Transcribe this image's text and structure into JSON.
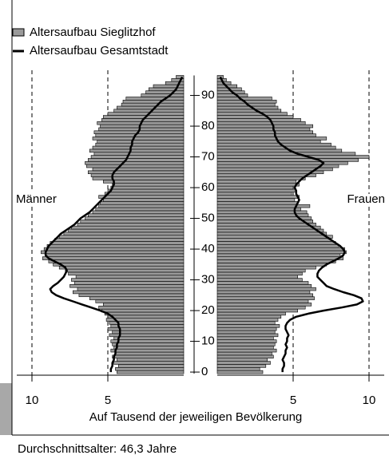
{
  "chart_data": {
    "type": "pyramid",
    "sides": [
      "Männer",
      "Frauen"
    ],
    "xlabel": "Auf Tausend der jeweiligen Bevölkerung",
    "xlim": [
      0,
      11
    ],
    "xticks": [
      5,
      10
    ],
    "ylim": [
      0,
      97
    ],
    "yticks": [
      0,
      10,
      20,
      30,
      40,
      50,
      60,
      70,
      80,
      90
    ],
    "grid": true,
    "series": [
      {
        "name": "Altersaufbau Sieglitzhof",
        "kind": "bar",
        "color": "#9a9a9a",
        "men": [
          4.4,
          4.5,
          4.3,
          4.6,
          4.4,
          4.7,
          4.5,
          4.8,
          4.6,
          4.7,
          4.8,
          4.6,
          4.9,
          4.7,
          5.0,
          4.8,
          4.9,
          5.1,
          5.0,
          5.2,
          5.4,
          5.6,
          5.3,
          5.8,
          6.2,
          6.9,
          7.3,
          7.0,
          7.5,
          7.2,
          7.4,
          7.1,
          7.6,
          7.8,
          8.2,
          8.6,
          8.9,
          9.3,
          9.1,
          9.4,
          9.2,
          9.0,
          8.8,
          8.5,
          8.2,
          7.9,
          7.6,
          7.4,
          7.0,
          6.8,
          6.5,
          6.3,
          6.0,
          5.8,
          5.6,
          5.5,
          5.3,
          5.6,
          5.2,
          5.0,
          4.8,
          4.7,
          5.3,
          6.0,
          6.1,
          6.3,
          6.0,
          6.4,
          6.5,
          6.3,
          6.1,
          5.9,
          6.2,
          6.0,
          5.8,
          5.7,
          6.0,
          5.8,
          5.9,
          5.6,
          5.5,
          5.7,
          5.4,
          5.3,
          5.0,
          4.6,
          4.4,
          4.1,
          4.0,
          3.8,
          2.8,
          2.5,
          2.3,
          2.0,
          1.2,
          0.8,
          0.5
        ],
        "women": [
          3.0,
          2.8,
          3.2,
          3.5,
          3.3,
          3.7,
          3.6,
          3.9,
          3.7,
          3.8,
          3.9,
          3.7,
          4.0,
          3.8,
          3.9,
          4.1,
          3.8,
          4.0,
          4.2,
          4.5,
          5.3,
          5.8,
          6.2,
          6.0,
          6.4,
          6.3,
          6.1,
          6.5,
          6.2,
          6.0,
          5.6,
          5.3,
          5.6,
          5.8,
          6.5,
          7.2,
          7.8,
          8.3,
          8.1,
          8.5,
          8.4,
          8.0,
          7.8,
          7.5,
          7.6,
          7.2,
          7.0,
          6.8,
          6.5,
          6.3,
          6.2,
          6.0,
          5.9,
          5.5,
          6.1,
          5.3,
          5.1,
          5.4,
          4.9,
          5.2,
          5.0,
          5.4,
          5.2,
          5.8,
          6.5,
          7.0,
          7.6,
          8.0,
          8.6,
          9.3,
          10.0,
          9.1,
          8.2,
          7.8,
          7.5,
          6.8,
          7.2,
          6.5,
          6.3,
          6.1,
          6.3,
          5.8,
          5.5,
          5.0,
          4.6,
          4.2,
          4.0,
          3.8,
          3.9,
          3.6,
          2.0,
          1.8,
          1.6,
          1.3,
          0.9,
          0.6,
          0.4
        ]
      },
      {
        "name": "Altersaufbau Gesamtstadt",
        "kind": "line",
        "color": "#000000",
        "men": [
          4.8,
          4.8,
          4.7,
          4.7,
          4.6,
          4.6,
          4.5,
          4.5,
          4.4,
          4.4,
          4.3,
          4.3,
          4.2,
          4.2,
          4.2,
          4.3,
          4.3,
          4.5,
          4.7,
          5.0,
          5.5,
          6.1,
          6.7,
          7.3,
          7.9,
          8.4,
          8.7,
          8.8,
          8.6,
          8.3,
          8.1,
          7.9,
          7.8,
          7.7,
          7.8,
          8.1,
          8.5,
          8.9,
          9.1,
          9.1,
          9.0,
          8.9,
          8.7,
          8.5,
          8.3,
          8.1,
          7.8,
          7.5,
          7.2,
          7.0,
          6.8,
          6.5,
          6.2,
          6.0,
          5.8,
          5.6,
          5.4,
          5.2,
          5.0,
          4.8,
          4.7,
          4.6,
          4.6,
          4.7,
          4.7,
          4.6,
          4.4,
          4.2,
          4.0,
          3.8,
          3.7,
          3.6,
          3.5,
          3.5,
          3.4,
          3.4,
          3.3,
          3.2,
          3.0,
          2.9,
          2.9,
          2.8,
          2.7,
          2.5,
          2.3,
          2.1,
          1.9,
          1.7,
          1.5,
          1.2,
          0.9,
          0.7,
          0.5,
          0.4,
          0.3,
          0.2,
          0.1
        ],
        "women": [
          4.3,
          4.3,
          4.4,
          4.4,
          4.3,
          4.4,
          4.5,
          4.5,
          4.6,
          4.5,
          4.6,
          4.6,
          4.7,
          4.6,
          4.5,
          4.5,
          4.6,
          4.8,
          5.2,
          6.0,
          7.0,
          8.2,
          9.2,
          9.6,
          9.5,
          9.0,
          8.3,
          7.7,
          7.2,
          7.0,
          6.8,
          6.6,
          6.6,
          6.7,
          6.9,
          7.2,
          7.6,
          8.0,
          8.3,
          8.4,
          8.3,
          8.1,
          7.8,
          7.5,
          7.2,
          6.9,
          6.6,
          6.3,
          6.0,
          5.7,
          5.4,
          5.2,
          5.1,
          5.1,
          5.2,
          5.3,
          5.4,
          5.3,
          5.2,
          5.2,
          5.1,
          5.2,
          5.4,
          5.6,
          5.9,
          6.2,
          6.5,
          6.8,
          7.0,
          6.7,
          6.0,
          5.3,
          4.8,
          4.5,
          4.2,
          4.0,
          3.9,
          3.8,
          3.8,
          3.7,
          3.7,
          3.6,
          3.5,
          3.3,
          3.0,
          2.6,
          2.3,
          2.0,
          1.8,
          1.5,
          1.3,
          1.0,
          0.8,
          0.6,
          0.4,
          0.3,
          0.2
        ]
      }
    ]
  },
  "note": "Durchschnittsalter: 46,3 Jahre"
}
